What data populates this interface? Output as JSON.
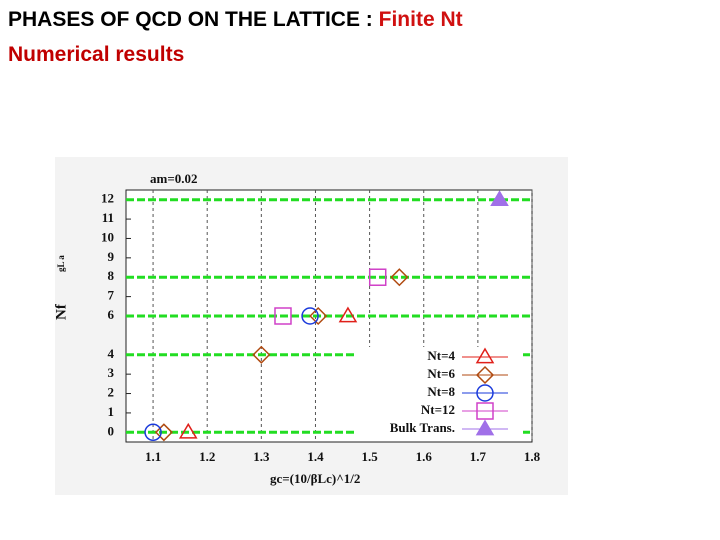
{
  "slide": {
    "title": "PHASES OF QCD ON THE LATTICE : ",
    "title_highlight": "Finite Nt",
    "subtitle": "Numerical results"
  },
  "chart_data": {
    "type": "scatter",
    "title": "am=0.02",
    "xlabel": "gc=(10/βLc)^1/2",
    "ylabel": "Nf",
    "ylabel_extra": "gL a",
    "xlim": [
      1.05,
      1.8
    ],
    "xticks": [
      1.1,
      1.2,
      1.3,
      1.4,
      1.5,
      1.6,
      1.7,
      1.8
    ],
    "ylim": [
      -0.5,
      12.5
    ],
    "yticks": [
      0,
      1,
      2,
      3,
      4,
      6,
      7,
      8,
      9,
      10,
      11,
      12
    ],
    "reference_lines": [
      0,
      4,
      6,
      8,
      12
    ],
    "reference_color": "#22dd22",
    "grid": true,
    "legend": "lower right",
    "series": [
      {
        "name": "Nt=4",
        "color": "#e0201a",
        "marker": "triangle",
        "x": [
          1.165,
          1.46
        ],
        "values": [
          0,
          6
        ]
      },
      {
        "name": "Nt=6",
        "color": "#b04a10",
        "marker": "diamond",
        "x": [
          1.12,
          1.3,
          1.405,
          1.555
        ],
        "values": [
          0,
          4,
          6,
          8
        ]
      },
      {
        "name": "Nt=8",
        "color": "#1a3adb",
        "marker": "circle",
        "x": [
          1.1,
          1.39
        ],
        "values": [
          0,
          6
        ]
      },
      {
        "name": "Nt=12",
        "color": "#d040c8",
        "marker": "square",
        "x": [
          1.34,
          1.515
        ],
        "values": [
          6,
          8
        ]
      },
      {
        "name": "Bulk Trans.",
        "color": "#a070e8",
        "marker": "filled-triangle",
        "x": [
          1.74
        ],
        "values": [
          12
        ]
      }
    ]
  }
}
